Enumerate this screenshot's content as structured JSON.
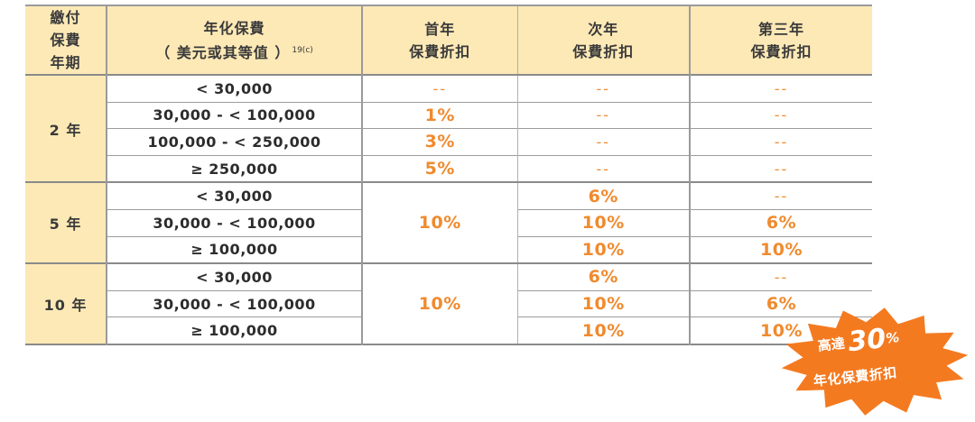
{
  "table": {
    "headers": {
      "term": "繳付\n保費\n年期",
      "premium": "年化保費\n（ 美元或其等值 ）",
      "premium_ref": "19(c)",
      "first_year": "首年\n保費折扣",
      "second_year": "次年\n保費折扣",
      "third_year": "第三年\n保費折扣"
    },
    "groups": [
      {
        "term": "2 年",
        "rows": [
          {
            "range": "< 30,000",
            "first": "--",
            "second": "--",
            "third": "--"
          },
          {
            "range": "30,000 - < 100,000",
            "first": "1%",
            "second": "--",
            "third": "--"
          },
          {
            "range": "100,000 - < 250,000",
            "first": "3%",
            "second": "--",
            "third": "--"
          },
          {
            "range": "≥ 250,000",
            "first": "5%",
            "second": "--",
            "third": "--"
          }
        ]
      },
      {
        "term": "5 年",
        "first_merged": "10%",
        "rows": [
          {
            "range": "< 30,000",
            "second": "6%",
            "third": "--"
          },
          {
            "range": "30,000 - < 100,000",
            "second": "10%",
            "third": "6%"
          },
          {
            "range": "≥ 100,000",
            "second": "10%",
            "third": "10%"
          }
        ]
      },
      {
        "term": "10 年",
        "first_merged": "10%",
        "rows": [
          {
            "range": "< 30,000",
            "second": "6%",
            "third": "--"
          },
          {
            "range": "30,000 - < 100,000",
            "second": "10%",
            "third": "6%"
          },
          {
            "range": "≥ 100,000",
            "second": "10%",
            "third": "10%"
          }
        ]
      }
    ]
  },
  "badge": {
    "prefix": "高達",
    "big": "30",
    "suffix": "%",
    "subtitle": "年化保費折扣",
    "color": "#f47a20"
  },
  "colors": {
    "header_bg": "#fde9b6",
    "percent_text": "#f08a2e"
  }
}
